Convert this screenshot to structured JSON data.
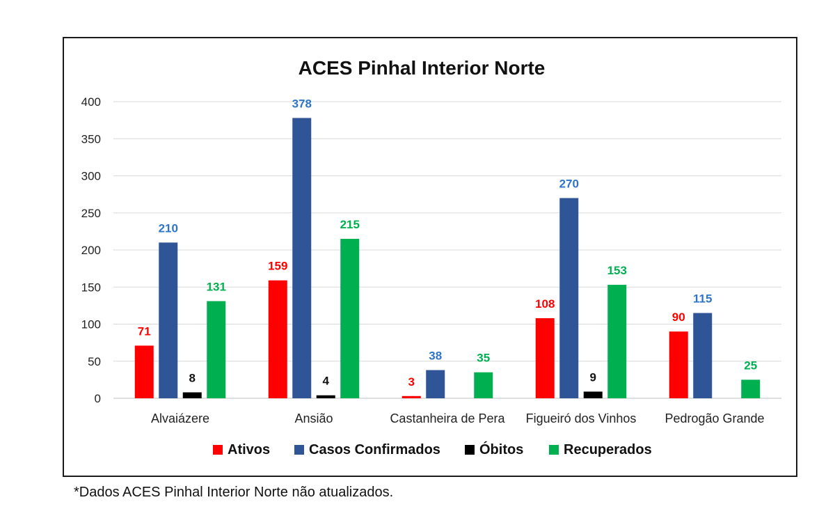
{
  "chart_data": {
    "type": "bar",
    "title": "ACES Pinhal Interior Norte",
    "categories": [
      "Alvaiázere",
      "Ansião",
      "Castanheira de Pera",
      "Figueiró dos Vinhos",
      "Pedrogão Grande"
    ],
    "ylim": [
      0,
      400
    ],
    "yticks": [
      0,
      50,
      100,
      150,
      200,
      250,
      300,
      350,
      400
    ],
    "grid": true,
    "legend_position": "bottom",
    "series": [
      {
        "name": "Ativos",
        "color": "#ff0000",
        "label_color": "#ff0000",
        "values": [
          71,
          159,
          3,
          108,
          90
        ]
      },
      {
        "name": "Casos Confirmados",
        "color": "#2f5597",
        "label_color": "#2e75c7",
        "values": [
          210,
          378,
          38,
          270,
          115
        ]
      },
      {
        "name": "Óbitos",
        "color": "#000000",
        "label_color": "#111111",
        "values": [
          8,
          4,
          null,
          9,
          null
        ]
      },
      {
        "name": "Recuperados",
        "color": "#00b050",
        "label_color": "#00b050",
        "values": [
          131,
          215,
          35,
          153,
          25
        ]
      }
    ]
  },
  "footnote": "*Dados ACES Pinhal Interior Norte não atualizados."
}
